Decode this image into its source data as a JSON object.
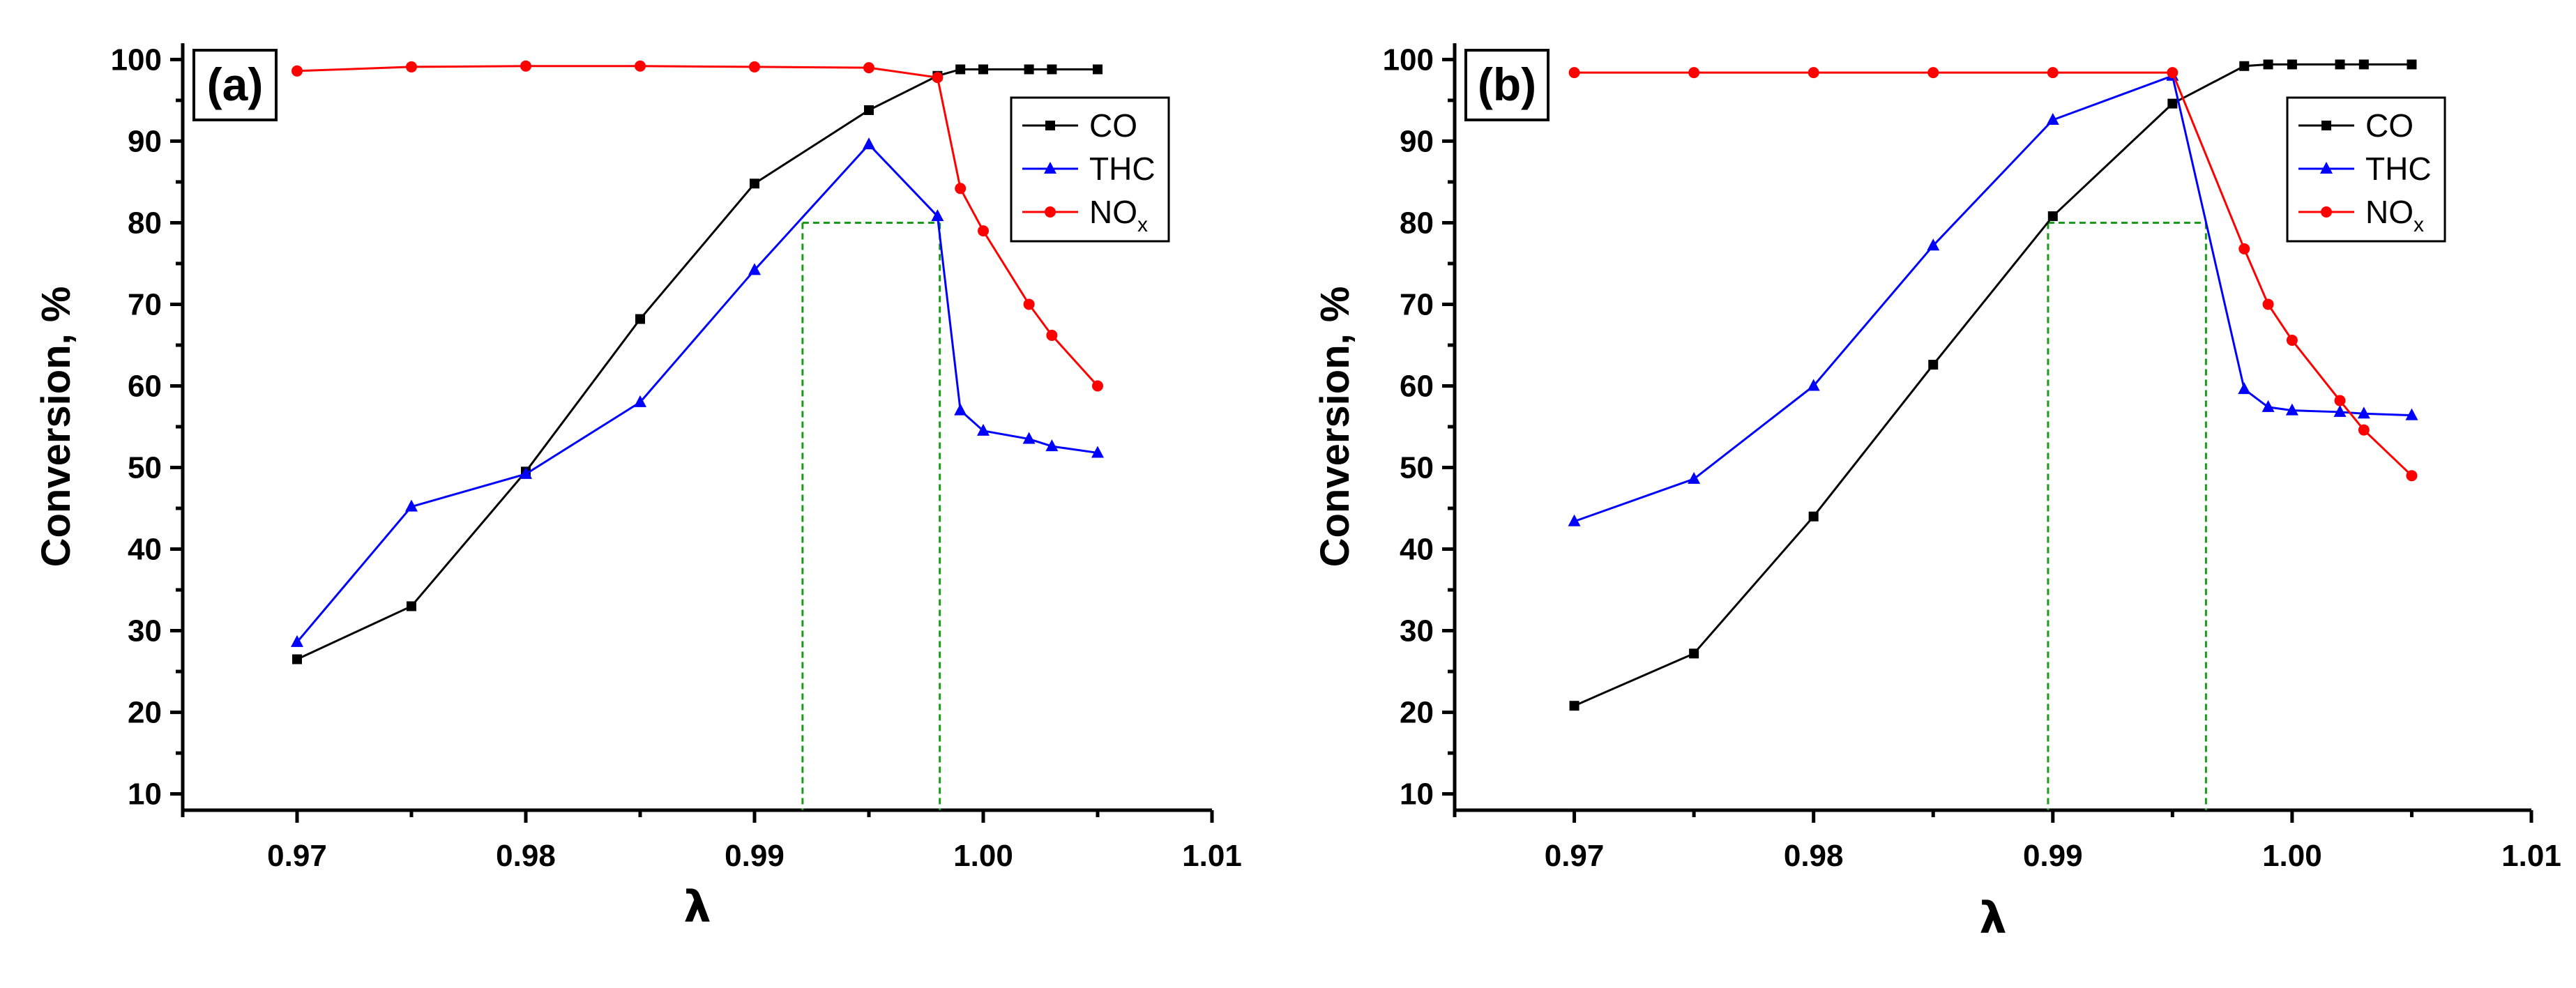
{
  "chart_data": [
    {
      "type": "line",
      "panel_label": "(a)",
      "xlabel": "λ",
      "ylabel": "Conversion, %",
      "xlim": [
        0.965,
        1.01
      ],
      "ylim": [
        8,
        102
      ],
      "xticks": [
        0.97,
        0.98,
        0.99,
        1.0,
        1.01
      ],
      "xtick_labels": [
        "0.97",
        "0.98",
        "0.99",
        "1.00",
        "1.01"
      ],
      "yticks": [
        10,
        20,
        30,
        40,
        50,
        60,
        70,
        80,
        90,
        100
      ],
      "ytick_labels": [
        "10",
        "20",
        "30",
        "40",
        "50",
        "60",
        "70",
        "80",
        "90",
        "100"
      ],
      "legend_position": "top-right",
      "series": [
        {
          "name": "CO",
          "legend_main": "CO",
          "legend_sub": "",
          "color": "#000000",
          "marker": "square",
          "x": [
            0.97,
            0.975,
            0.98,
            0.985,
            0.99,
            0.995,
            0.998,
            0.999,
            1.0,
            1.002,
            1.003,
            1.005
          ],
          "values": [
            26.5,
            33.0,
            49.5,
            68.2,
            84.8,
            93.8,
            98.0,
            98.8,
            98.8,
            98.8,
            98.8,
            98.8
          ]
        },
        {
          "name": "THC",
          "legend_main": "THC",
          "legend_sub": "",
          "color": "#0000ff",
          "marker": "triangle",
          "x": [
            0.97,
            0.975,
            0.98,
            0.985,
            0.99,
            0.995,
            0.998,
            0.999,
            1.0,
            1.002,
            1.003,
            1.005
          ],
          "values": [
            28.6,
            45.2,
            49.2,
            58.0,
            74.2,
            89.6,
            80.8,
            57.0,
            54.5,
            53.5,
            52.6,
            51.8
          ]
        },
        {
          "name": "NOx",
          "legend_main": "NO",
          "legend_sub": "x",
          "color": "#ff0000",
          "marker": "circle",
          "x": [
            0.97,
            0.975,
            0.98,
            0.985,
            0.99,
            0.995,
            0.998,
            0.999,
            1.0,
            1.002,
            1.003,
            1.005
          ],
          "values": [
            98.6,
            99.1,
            99.2,
            99.2,
            99.1,
            99.0,
            97.8,
            84.2,
            79.0,
            70.0,
            66.2,
            60.0
          ]
        }
      ],
      "annotations": {
        "threshold_y": 80,
        "window_x": [
          0.9921,
          0.9981
        ]
      }
    },
    {
      "type": "line",
      "panel_label": "(b)",
      "xlabel": "λ",
      "ylabel": "Conversion, %",
      "xlim": [
        0.965,
        1.01
      ],
      "ylim": [
        8,
        102
      ],
      "xticks": [
        0.97,
        0.98,
        0.99,
        1.0,
        1.01
      ],
      "xtick_labels": [
        "0.97",
        "0.98",
        "0.99",
        "1.00",
        "1.01"
      ],
      "yticks": [
        10,
        20,
        30,
        40,
        50,
        60,
        70,
        80,
        90,
        100
      ],
      "ytick_labels": [
        "10",
        "20",
        "30",
        "40",
        "50",
        "60",
        "70",
        "80",
        "90",
        "100"
      ],
      "legend_position": "top-right",
      "series": [
        {
          "name": "CO",
          "legend_main": "CO",
          "legend_sub": "",
          "color": "#000000",
          "marker": "square",
          "x": [
            0.97,
            0.975,
            0.98,
            0.985,
            0.99,
            0.995,
            0.998,
            0.999,
            1.0,
            1.002,
            1.003,
            1.005
          ],
          "values": [
            20.8,
            27.2,
            44.0,
            62.6,
            80.8,
            94.6,
            99.2,
            99.4,
            99.4,
            99.4,
            99.4,
            99.4
          ]
        },
        {
          "name": "THC",
          "legend_main": "THC",
          "legend_sub": "",
          "color": "#0000ff",
          "marker": "triangle",
          "x": [
            0.97,
            0.975,
            0.98,
            0.985,
            0.99,
            0.995,
            0.998,
            0.999,
            1.0,
            1.002,
            1.003,
            1.005
          ],
          "values": [
            43.4,
            48.6,
            60.0,
            77.2,
            92.6,
            98.0,
            59.6,
            57.4,
            57.0,
            56.8,
            56.6,
            56.4
          ]
        },
        {
          "name": "NOx",
          "legend_main": "NO",
          "legend_sub": "x",
          "color": "#ff0000",
          "marker": "circle",
          "x": [
            0.97,
            0.975,
            0.98,
            0.985,
            0.99,
            0.995,
            0.998,
            0.999,
            1.0,
            1.002,
            1.003,
            1.005
          ],
          "values": [
            98.4,
            98.4,
            98.4,
            98.4,
            98.4,
            98.4,
            76.8,
            70.0,
            65.6,
            58.2,
            54.6,
            49.0
          ]
        }
      ],
      "annotations": {
        "threshold_y": 80,
        "window_x": [
          0.9898,
          0.9964
        ]
      }
    }
  ]
}
